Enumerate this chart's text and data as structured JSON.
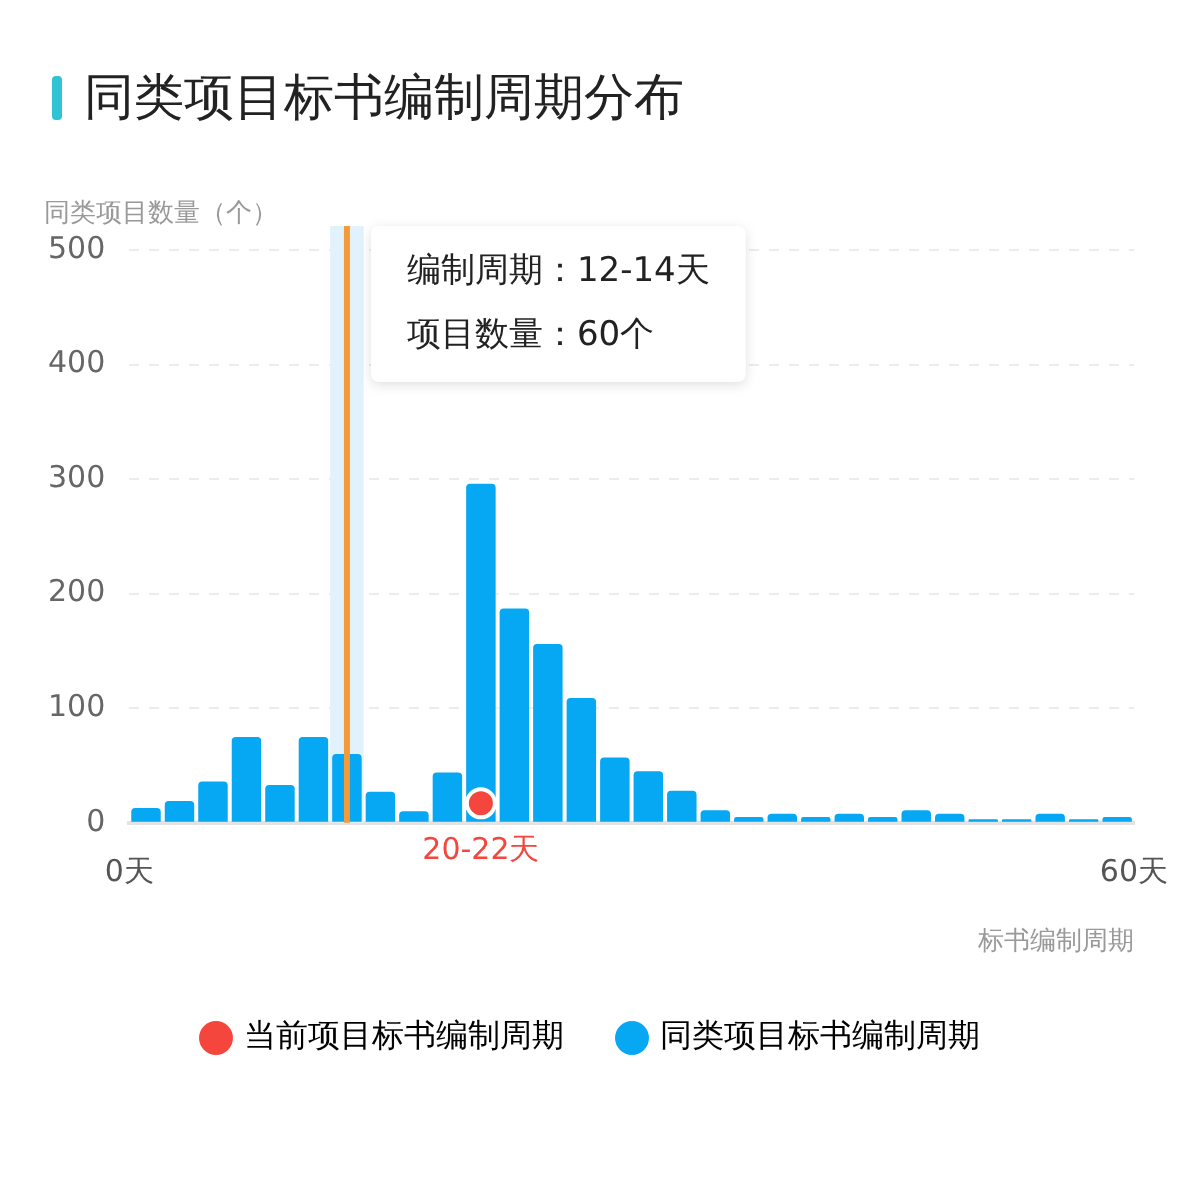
{
  "chart_data": {
    "type": "histogram",
    "title": "同类项目标书编制周期分布",
    "ylabel": "同类项目数量（个）",
    "xlabel": "标书编制周期",
    "bins": [
      0,
      2,
      4,
      6,
      8,
      10,
      12,
      14,
      16,
      18,
      20,
      22,
      24,
      26,
      28,
      30,
      32,
      34,
      36,
      38,
      40,
      42,
      44,
      46,
      48,
      50,
      52,
      54,
      56,
      58,
      60
    ],
    "series": [
      {
        "name": "当前项目标书编制周期",
        "type": "scatter",
        "color": "#f4463c",
        "x": [
          21
        ],
        "values": [
          17
        ]
      },
      {
        "name": "同类项目标书编制周期",
        "color": "#06a7f3",
        "values": [
          13,
          19,
          36,
          75,
          33,
          75,
          60,
          27,
          10,
          44,
          296,
          187,
          156,
          109,
          57,
          45,
          28,
          11,
          5,
          8,
          5,
          8,
          5,
          11,
          8,
          3,
          3,
          8,
          3,
          5
        ]
      }
    ],
    "xlim": [
      0,
      60
    ],
    "xticks": [
      {
        "value": 0,
        "label": "0天"
      },
      {
        "value": 60,
        "label": "60天"
      }
    ],
    "ylim": [
      0,
      500
    ],
    "yticks": [
      0,
      100,
      200,
      300,
      400,
      500
    ],
    "grid": "y",
    "legend": "bottom",
    "marker": "circle",
    "ref_lines": [
      {
        "axis": "x",
        "value": 13,
        "color": "#f39a3a"
      }
    ],
    "bands": [
      {
        "axis": "x",
        "from": 12,
        "to": 14,
        "color": "#e2f2fc"
      }
    ],
    "annotations": [
      "编制周期：12-14天",
      "项目数量：60个",
      "20-22天"
    ]
  }
}
